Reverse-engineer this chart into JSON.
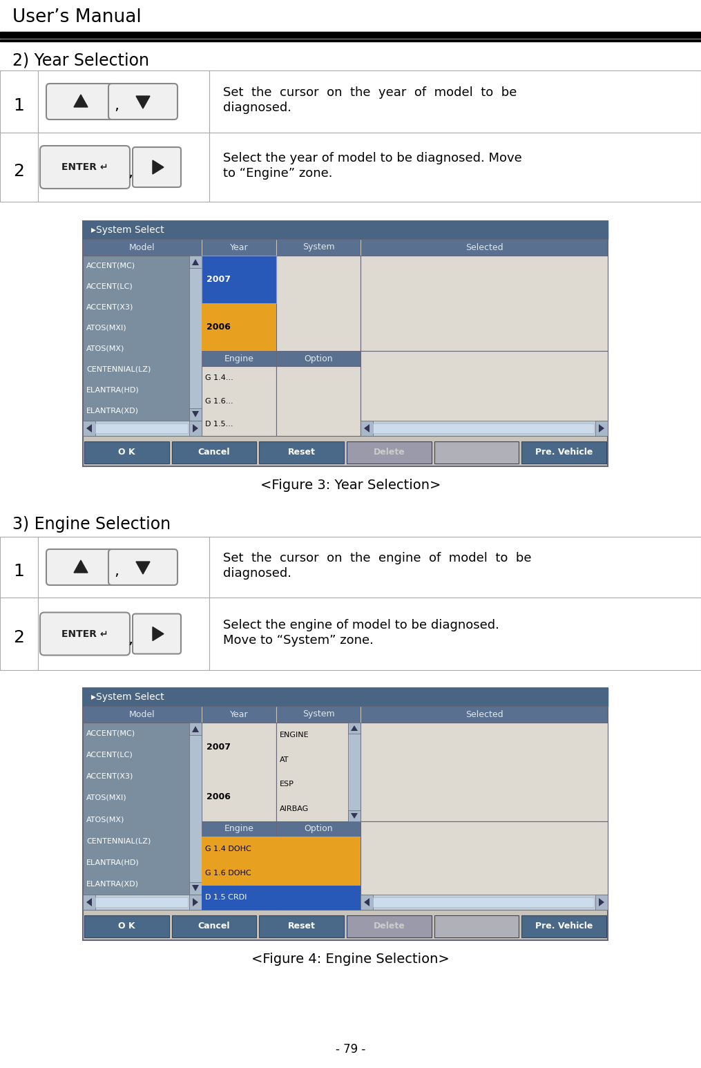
{
  "title": "User’s Manual",
  "page_number": "- 79 -",
  "section1_title": "2) Year Selection",
  "section2_title": "3) Engine Selection",
  "fig3_caption": "<Figure 3: Year Selection>",
  "fig4_caption": "<Figure 4: Engine Selection>",
  "row1_num": "1",
  "row2_num": "2",
  "row1_text_sec1": "Set  the  cursor  on  the  year  of  model  to  be\ndiagnosed.",
  "row2_text_sec1": "Select the year of model to be diagnosed. Move\nto “Engine” zone.",
  "row1_text_sec2": "Set  the  cursor  on  the  engine  of  model  to  be\ndiagnosed.",
  "row2_text_sec2": "Select the engine of model to be diagnosed.\nMove to “System” zone.",
  "model_items": [
    "ACCENT(MC)",
    "ACCENT(LC)",
    "ACCENT(X3)",
    "ATOS(MXI)",
    "ATOS(MX)",
    "CENTENNIAL(LZ)",
    "ELANTRA(HD)",
    "ELANTRA(XD)"
  ],
  "year_items_fig3": [
    "2007",
    "2006"
  ],
  "engine_items_fig3": [
    "G 1.4...",
    "G 1.6...",
    "D 1.5..."
  ],
  "year_items_fig4": [
    "2007",
    "2006"
  ],
  "system_items_fig4": [
    "ENGINE",
    "AT",
    "ESP",
    "AIRBAG"
  ],
  "engine_items_fig4": [
    "G 1.4 DOHC",
    "G 1.6 DOHC",
    "D 1.5 CRDI"
  ],
  "buttons": [
    "O K",
    "Cancel",
    "Reset",
    "Delete",
    "",
    "Pre. Vehicle"
  ],
  "col_headers": [
    "Model",
    "Year",
    "System",
    "Selected"
  ],
  "screen_title": "▸System Select",
  "color_title_bar": "#4a6484",
  "color_col_header": "#5a7090",
  "color_model_bg": "#7a8ea0",
  "color_list_bg": "#dedad2",
  "color_year_orange": "#e8a020",
  "color_year_blue": "#2858b8",
  "color_engine_sel_blue": "#2858b8",
  "color_engine_orange": "#e8a020",
  "color_scrollbar": "#b0c0d0",
  "color_hscroll_thumb": "#ccdcec",
  "color_btn_blue": "#4a6888",
  "color_btn_gray": "#9a9aaa",
  "color_outer_bg": "#c8c4bc",
  "color_white": "#ffffff",
  "color_black": "#000000",
  "color_border": "#666677"
}
